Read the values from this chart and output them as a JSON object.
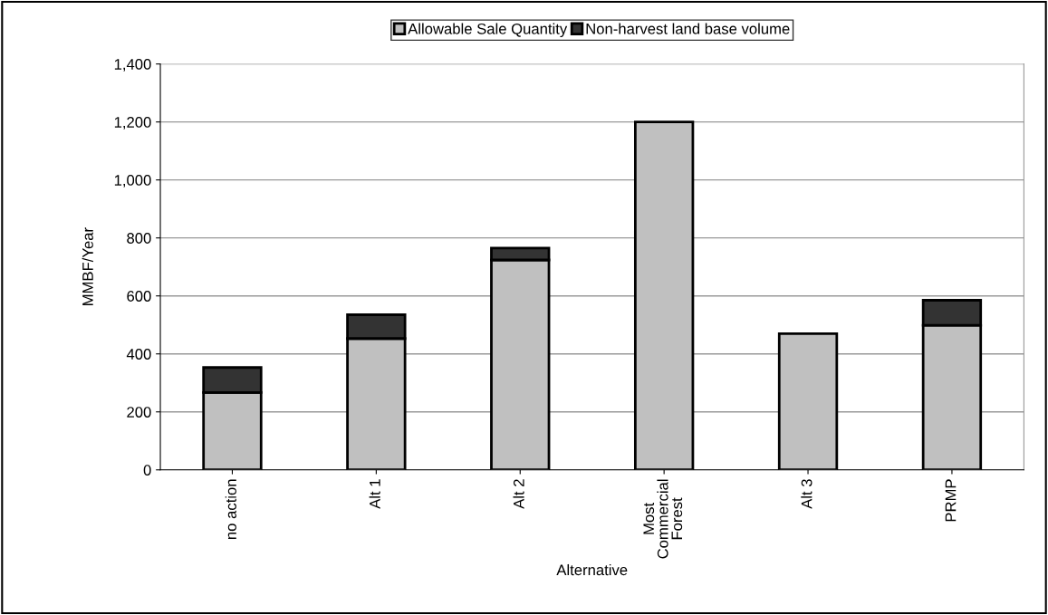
{
  "chart_data": {
    "type": "bar",
    "stacked": true,
    "xlabel": "Alternative",
    "ylabel": "MMBF/Year",
    "categories": [
      "no action",
      "Alt 1",
      "Alt 2",
      "Most\nCommercial\nForest",
      "Alt 3",
      "PRMP"
    ],
    "series": [
      {
        "name": "Allowable Sale Quantity",
        "color": "#c0c0c0",
        "values": [
          267,
          453,
          724,
          1200,
          470,
          499
        ]
      },
      {
        "name": "Non-harvest land base volume",
        "color": "#333333",
        "values": [
          86,
          82,
          41,
          null,
          null,
          86
        ]
      }
    ],
    "ylim": [
      0,
      1400
    ],
    "yticks": [
      {
        "value": 0,
        "label": "0"
      },
      {
        "value": 200,
        "label": "200"
      },
      {
        "value": 400,
        "label": "400"
      },
      {
        "value": 600,
        "label": "600"
      },
      {
        "value": 800,
        "label": "800"
      },
      {
        "value": 1000,
        "label": "1,000"
      },
      {
        "value": 1200,
        "label": "1,200"
      },
      {
        "value": 1400,
        "label": "1,400"
      }
    ],
    "grid": "y",
    "legend": "top"
  }
}
